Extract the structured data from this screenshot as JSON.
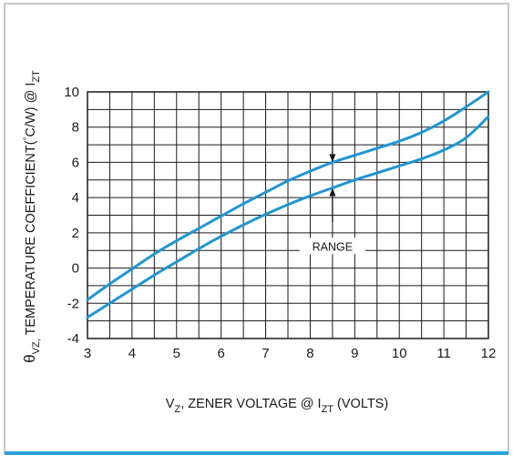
{
  "chart_data": {
    "type": "line",
    "xlabel": {
      "main": "V",
      "sub1": "Z",
      "mid": ", ZENER VOLTAGE @ I",
      "sub2": "ZT",
      "tail": " (VOLTS)"
    },
    "ylabel": {
      "symbol": "θ",
      "sub1": "VZ,",
      "mid": " TEMPERATURE COEFFICIENT(",
      "deg": "°",
      "mid2": "C/W) @ I",
      "sub2": "ZT"
    },
    "xlim": [
      3,
      12
    ],
    "ylim": [
      -4,
      10
    ],
    "x_ticks": [
      "3",
      "4",
      "5",
      "6",
      "7",
      "8",
      "9",
      "10",
      "11",
      "12"
    ],
    "y_ticks": [
      "-4",
      "-2",
      "0",
      "2",
      "4",
      "6",
      "8",
      "10"
    ],
    "grid_x": [
      3,
      3.5,
      4,
      4.5,
      5,
      5.5,
      6,
      6.5,
      7,
      7.5,
      8,
      8.5,
      9,
      9.5,
      10,
      10.5,
      11,
      11.5,
      12
    ],
    "grid_y": [
      -4,
      -3,
      -2,
      -1,
      0,
      1,
      2,
      3,
      4,
      5,
      6,
      7,
      8,
      9,
      10
    ],
    "grid": true,
    "series": [
      {
        "x": [
          3,
          3.5,
          4,
          4.5,
          5,
          5.5,
          6,
          6.5,
          7,
          7.5,
          8,
          8.5,
          9,
          9.5,
          10,
          10.5,
          11,
          11.5,
          12
        ],
        "values": [
          -1.8,
          -0.9,
          -0.05,
          0.8,
          1.55,
          2.25,
          2.95,
          3.65,
          4.3,
          4.95,
          5.5,
          6.0,
          6.4,
          6.8,
          7.2,
          7.7,
          8.35,
          9.15,
          10.0
        ]
      },
      {
        "x": [
          3,
          3.5,
          4,
          4.5,
          5,
          5.5,
          6,
          6.5,
          7,
          7.5,
          8,
          8.5,
          9,
          9.5,
          10,
          10.5,
          11,
          11.5,
          12
        ],
        "values": [
          -2.8,
          -2.0,
          -1.2,
          -0.4,
          0.35,
          1.1,
          1.8,
          2.45,
          3.05,
          3.6,
          4.1,
          4.55,
          5.0,
          5.4,
          5.8,
          6.2,
          6.7,
          7.4,
          8.6
        ]
      }
    ],
    "annotation": {
      "text": "RANGE",
      "arrow_x": 8.5,
      "upper_arrow_from": 8.0,
      "upper_arrow_to": 6.0,
      "lower_arrow_from": 2.6,
      "lower_arrow_to": 4.55,
      "label_y": 1.2
    },
    "colors": {
      "curve": "#2196d3",
      "frame_bottom": "#2aa0dc",
      "grid": "#1a1a1a",
      "border": "#b5b5b5"
    }
  }
}
